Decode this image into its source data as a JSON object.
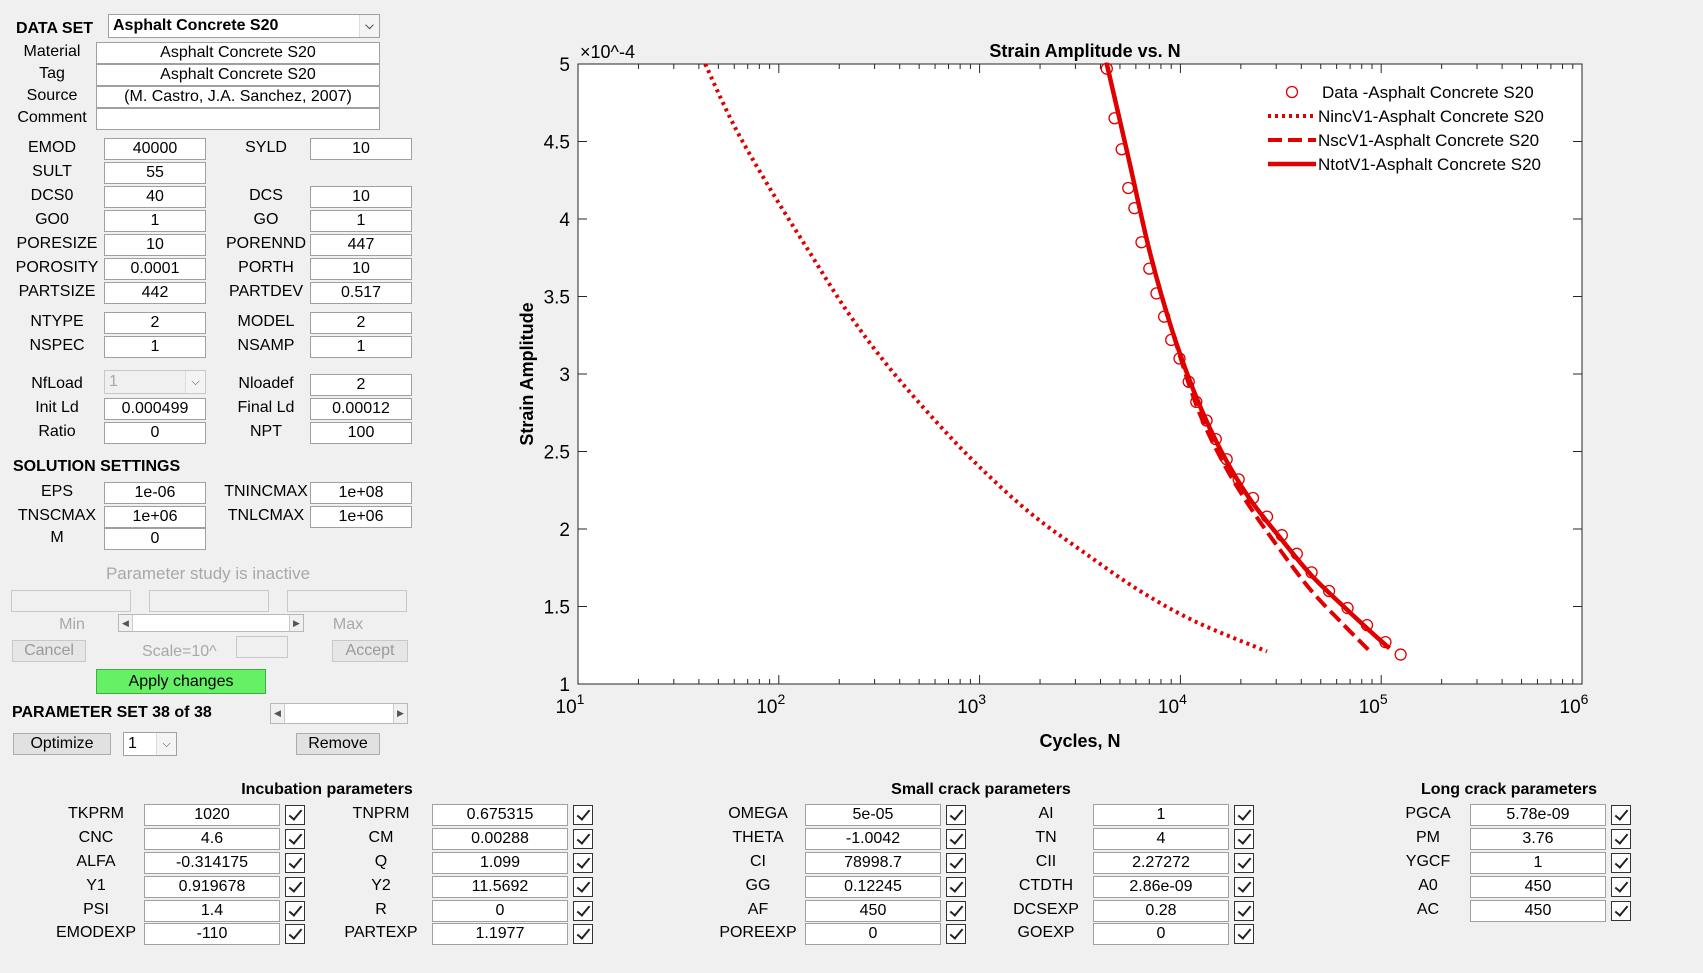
{
  "dataset": {
    "label": "DATA SET",
    "selected": "Asphalt Concrete S20"
  },
  "info": [
    {
      "label": "Material",
      "value": "Asphalt Concrete S20"
    },
    {
      "label": "Tag",
      "value": "Asphalt Concrete S20"
    },
    {
      "label": "Source",
      "value": "(M. Castro, J.A. Sanchez, 2007)"
    },
    {
      "label": "Comment",
      "value": ""
    }
  ],
  "props": {
    "emod": {
      "label": "EMOD",
      "value": "40000"
    },
    "syld": {
      "label": "SYLD",
      "value": "10"
    },
    "sult": {
      "label": "SULT",
      "value": "55"
    },
    "dcs0": {
      "label": "DCS0",
      "value": "40"
    },
    "dcs": {
      "label": "DCS",
      "value": "10"
    },
    "go0": {
      "label": "GO0",
      "value": "1"
    },
    "go": {
      "label": "GO",
      "value": "1"
    },
    "poresize": {
      "label": "PORESIZE",
      "value": "10"
    },
    "porennd": {
      "label": "PORENND",
      "value": "447"
    },
    "porosity": {
      "label": "POROSITY",
      "value": "0.0001"
    },
    "porth": {
      "label": "PORTH",
      "value": "10"
    },
    "partsize": {
      "label": "PARTSIZE",
      "value": "442"
    },
    "partdev": {
      "label": "PARTDEV",
      "value": "0.517"
    },
    "ntype": {
      "label": "NTYPE",
      "value": "2"
    },
    "model": {
      "label": "MODEL",
      "value": "2"
    },
    "nspec": {
      "label": "NSPEC",
      "value": "1"
    },
    "nsamp": {
      "label": "NSAMP",
      "value": "1"
    },
    "nfload": {
      "label": "NfLoad",
      "value": "1"
    },
    "nloadef": {
      "label": "Nloadef",
      "value": "2"
    },
    "initld": {
      "label": "Init Ld",
      "value": "0.000499"
    },
    "finalld": {
      "label": "Final Ld",
      "value": "0.00012"
    },
    "ratio": {
      "label": "Ratio",
      "value": "0"
    },
    "npt": {
      "label": "NPT",
      "value": "100"
    }
  },
  "solution": {
    "title": "SOLUTION SETTINGS",
    "eps": {
      "label": "EPS",
      "value": "1e-06"
    },
    "tnincmax": {
      "label": "TNINCMAX",
      "value": "1e+08"
    },
    "tnscmax": {
      "label": "TNSCMAX",
      "value": "1e+06"
    },
    "tnlcmax": {
      "label": "TNLCMAX",
      "value": "1e+06"
    },
    "m": {
      "label": "M",
      "value": "0"
    }
  },
  "study": {
    "status": "Parameter study is inactive",
    "min_label": "Min",
    "max_label": "Max",
    "cancel": "Cancel",
    "scale_label": "Scale=10^",
    "accept": "Accept",
    "apply": "Apply changes"
  },
  "paramset": {
    "label": "PARAMETER SET 38 of 38",
    "optimize": "Optimize",
    "opt_value": "1",
    "remove": "Remove"
  },
  "groups": {
    "incubation": {
      "title": "Incubation parameters",
      "left": [
        {
          "label": "TKPRM",
          "value": "1020"
        },
        {
          "label": "CNC",
          "value": "4.6"
        },
        {
          "label": "ALFA",
          "value": "-0.314175"
        },
        {
          "label": "Y1",
          "value": "0.919678"
        },
        {
          "label": "PSI",
          "value": "1.4"
        },
        {
          "label": "EMODEXP",
          "value": "-110"
        }
      ],
      "right": [
        {
          "label": "TNPRM",
          "value": "0.675315"
        },
        {
          "label": "CM",
          "value": "0.00288"
        },
        {
          "label": "Q",
          "value": "1.099"
        },
        {
          "label": "Y2",
          "value": "11.5692"
        },
        {
          "label": "R",
          "value": "0"
        },
        {
          "label": "PARTEXP",
          "value": "1.1977"
        }
      ]
    },
    "small": {
      "title": "Small crack parameters",
      "left": [
        {
          "label": "OMEGA",
          "value": "5e-05"
        },
        {
          "label": "THETA",
          "value": "-1.0042"
        },
        {
          "label": "CI",
          "value": "78998.7"
        },
        {
          "label": "GG",
          "value": "0.12245"
        },
        {
          "label": "AF",
          "value": "450"
        },
        {
          "label": "POREEXP",
          "value": "0"
        }
      ],
      "right": [
        {
          "label": "AI",
          "value": "1"
        },
        {
          "label": "TN",
          "value": "4"
        },
        {
          "label": "CII",
          "value": "2.27272"
        },
        {
          "label": "CTDTH",
          "value": "2.86e-09"
        },
        {
          "label": "DCSEXP",
          "value": "0.28"
        },
        {
          "label": "GOEXP",
          "value": "0"
        }
      ]
    },
    "long": {
      "title": "Long crack parameters",
      "left": [
        {
          "label": "PGCA",
          "value": "5.78e-09"
        },
        {
          "label": "PM",
          "value": "3.76"
        },
        {
          "label": "YGCF",
          "value": "1"
        },
        {
          "label": "A0",
          "value": "450"
        },
        {
          "label": "AC",
          "value": "450"
        }
      ]
    }
  },
  "colors": {
    "series": "#e00000"
  },
  "chart_data": {
    "type": "line",
    "title": "Strain Amplitude vs. N",
    "xlabel": "Cycles, N",
    "ylabel": "Strain Amplitude",
    "xscale": "log",
    "xlim": [
      10,
      1000000
    ],
    "ylim": [
      1,
      5
    ],
    "y_multiplier": "×10^-4",
    "xticks": [
      "10^1",
      "10^2",
      "10^3",
      "10^4",
      "10^5",
      "10^6"
    ],
    "yticks": [
      "1",
      "1.5",
      "2",
      "2.5",
      "3",
      "3.5",
      "4",
      "4.5",
      "5"
    ],
    "grid": false,
    "legend_position": "top-right",
    "series": [
      {
        "name": "Data -Asphalt Concrete S20",
        "style": "markers",
        "x": [
          4300,
          4700,
          5100,
          5500,
          5900,
          6400,
          7000,
          7600,
          8300,
          9000,
          9900,
          11000,
          12000,
          13500,
          15000,
          17000,
          19500,
          23000,
          27000,
          32000,
          38000,
          45000,
          55000,
          68000,
          85000,
          105000,
          125000
        ],
        "y": [
          4.97,
          4.65,
          4.45,
          4.2,
          4.07,
          3.85,
          3.68,
          3.52,
          3.37,
          3.22,
          3.1,
          2.95,
          2.82,
          2.7,
          2.58,
          2.45,
          2.32,
          2.2,
          2.08,
          1.96,
          1.84,
          1.72,
          1.6,
          1.49,
          1.38,
          1.27,
          1.19
        ]
      },
      {
        "name": "NincV1-Asphalt Concrete S20",
        "style": "dotted",
        "x": [
          43,
          60,
          90,
          140,
          220,
          350,
          600,
          1000,
          1800,
          3300,
          6300,
          12000,
          27000
        ],
        "y": [
          5.0,
          4.6,
          4.2,
          3.8,
          3.4,
          3.05,
          2.7,
          2.4,
          2.1,
          1.85,
          1.6,
          1.4,
          1.21
        ]
      },
      {
        "name": "NscV1-Asphalt Concrete S20",
        "style": "dashed",
        "x": [
          4300,
          5500,
          7000,
          9000,
          12000,
          16000,
          22000,
          32000,
          45000,
          63000,
          88000
        ],
        "y": [
          5.0,
          4.4,
          3.8,
          3.3,
          2.8,
          2.45,
          2.15,
          1.85,
          1.6,
          1.4,
          1.21
        ]
      },
      {
        "name": "NtotV1-Asphalt Concrete S20",
        "style": "solid",
        "x": [
          4300,
          5500,
          7000,
          9000,
          12000,
          16000,
          22000,
          32000,
          45000,
          65000,
          90000,
          110000
        ],
        "y": [
          5.0,
          4.4,
          3.8,
          3.3,
          2.85,
          2.5,
          2.2,
          1.93,
          1.7,
          1.5,
          1.33,
          1.23
        ]
      }
    ]
  }
}
